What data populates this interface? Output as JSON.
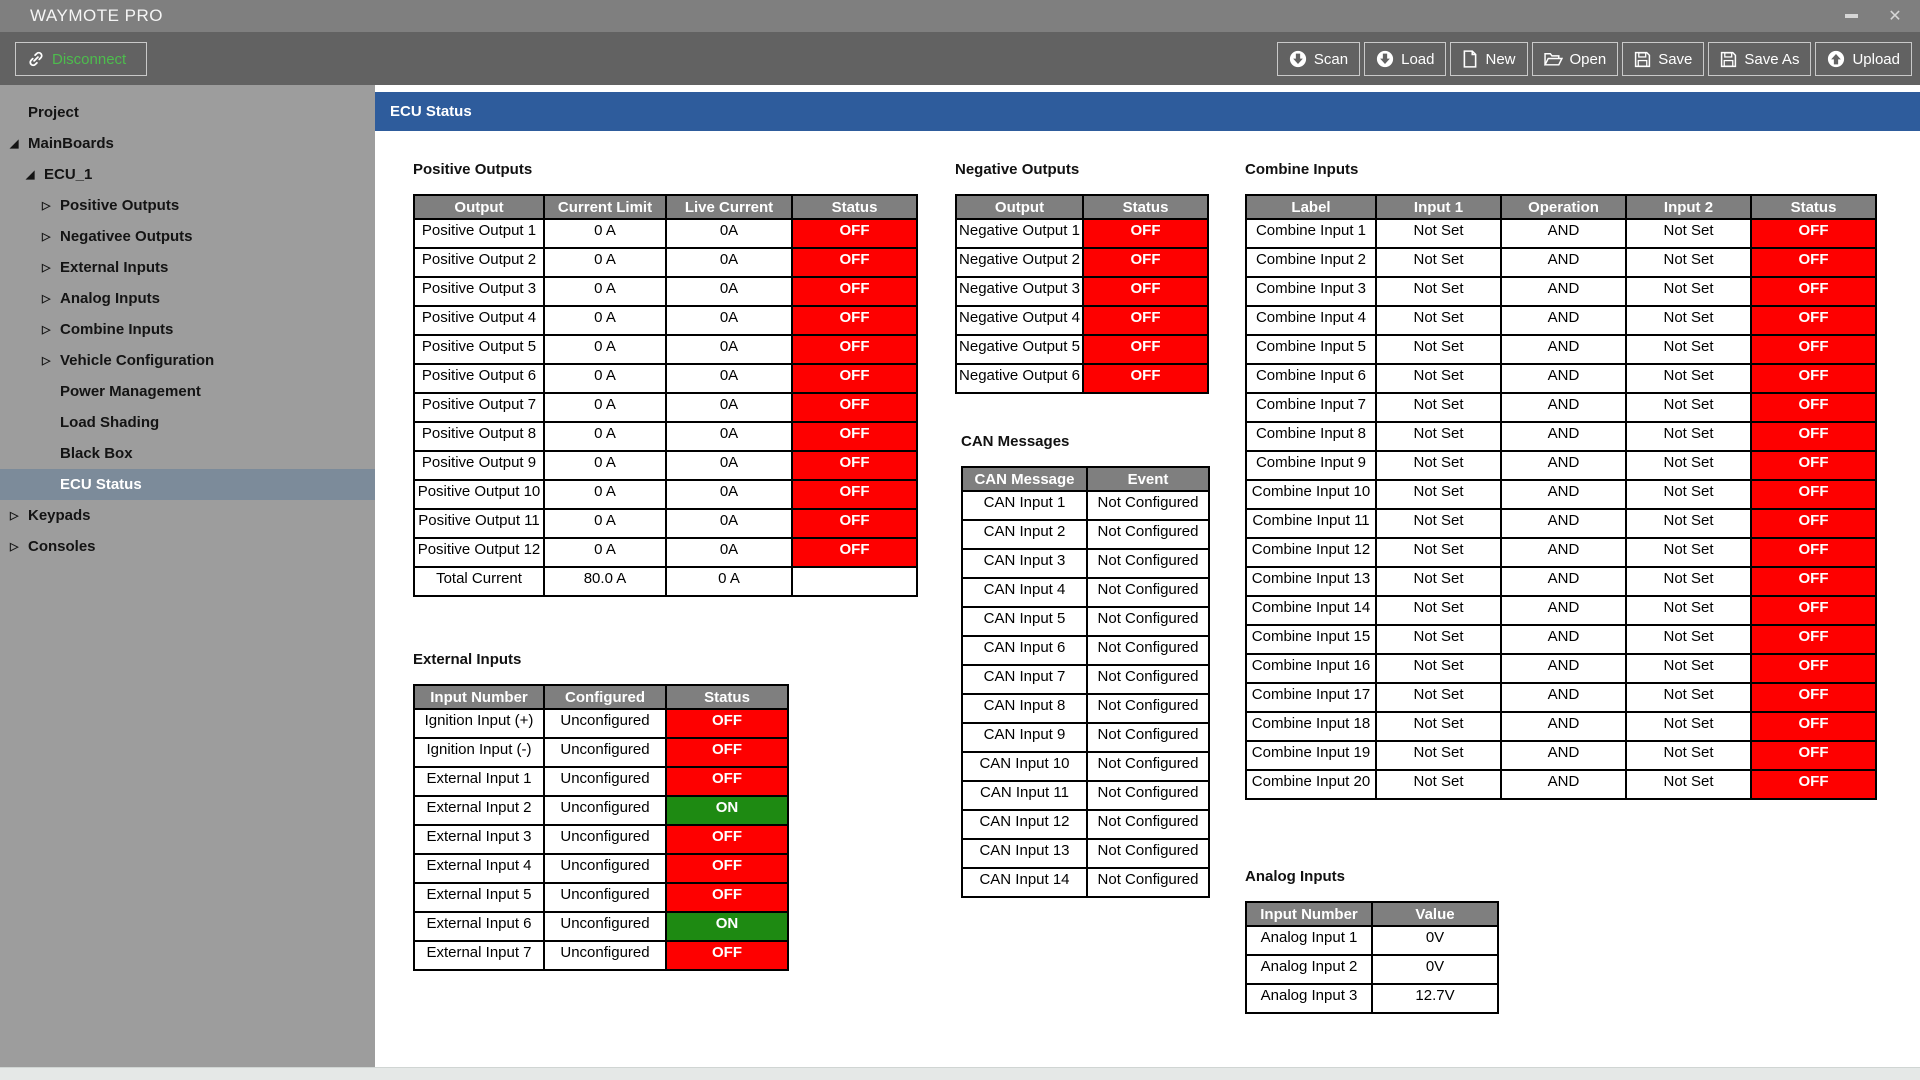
{
  "window": {
    "title": "WAYMOTE PRO"
  },
  "header": {
    "title": "ECU Status"
  },
  "toolbar": {
    "disconnect": {
      "label": "Disconnect",
      "icon": "chain-link-icon"
    },
    "buttons": [
      {
        "label": "Scan",
        "icon": "circle-down-arrow-icon"
      },
      {
        "label": "Load",
        "icon": "circle-down-arrow-icon"
      },
      {
        "label": "New",
        "icon": "document-icon"
      },
      {
        "label": "Open",
        "icon": "folder-open-icon"
      },
      {
        "label": "Save",
        "icon": "floppy-icon"
      },
      {
        "label": "Save As",
        "icon": "floppy-icon"
      },
      {
        "label": "Upload",
        "icon": "circle-up-arrow-icon"
      }
    ]
  },
  "sidebar": {
    "items": [
      {
        "label": "Project",
        "depth": 0,
        "arrow": "none",
        "selected": false
      },
      {
        "label": "MainBoards",
        "depth": 0,
        "arrow": "expanded",
        "selected": false
      },
      {
        "label": "ECU_1",
        "depth": 1,
        "arrow": "expanded",
        "selected": false
      },
      {
        "label": "Positive Outputs",
        "depth": 2,
        "arrow": "collapsed",
        "selected": false
      },
      {
        "label": "Negativee Outputs",
        "depth": 2,
        "arrow": "collapsed",
        "selected": false
      },
      {
        "label": "External Inputs",
        "depth": 2,
        "arrow": "collapsed",
        "selected": false
      },
      {
        "label": "Analog Inputs",
        "depth": 2,
        "arrow": "collapsed",
        "selected": false
      },
      {
        "label": "Combine Inputs",
        "depth": 2,
        "arrow": "collapsed",
        "selected": false
      },
      {
        "label": "Vehicle Configuration",
        "depth": 2,
        "arrow": "collapsed",
        "selected": false
      },
      {
        "label": "Power Management",
        "depth": 2,
        "arrow": "none",
        "selected": false
      },
      {
        "label": "Load Shading",
        "depth": 2,
        "arrow": "none",
        "selected": false
      },
      {
        "label": "Black Box",
        "depth": 2,
        "arrow": "none",
        "selected": false
      },
      {
        "label": "ECU Status",
        "depth": 2,
        "arrow": "none",
        "selected": true
      },
      {
        "label": "Keypads",
        "depth": 0,
        "arrow": "collapsed",
        "selected": false
      },
      {
        "label": "Consoles",
        "depth": 0,
        "arrow": "collapsed",
        "selected": false
      }
    ]
  },
  "tables": {
    "positive_outputs": {
      "title": "Positive Outputs",
      "columns": [
        "Output",
        "Current Limit",
        "Live Current",
        "Status"
      ],
      "rows": [
        [
          "Positive Output 1",
          "0 A",
          "0A",
          "OFF"
        ],
        [
          "Positive Output 2",
          "0 A",
          "0A",
          "OFF"
        ],
        [
          "Positive Output 3",
          "0 A",
          "0A",
          "OFF"
        ],
        [
          "Positive Output 4",
          "0 A",
          "0A",
          "OFF"
        ],
        [
          "Positive Output 5",
          "0 A",
          "0A",
          "OFF"
        ],
        [
          "Positive Output 6",
          "0 A",
          "0A",
          "OFF"
        ],
        [
          "Positive Output 7",
          "0 A",
          "0A",
          "OFF"
        ],
        [
          "Positive Output 8",
          "0 A",
          "0A",
          "OFF"
        ],
        [
          "Positive Output 9",
          "0 A",
          "0A",
          "OFF"
        ],
        [
          "Positive Output 10",
          "0 A",
          "0A",
          "OFF"
        ],
        [
          "Positive Output 11",
          "0 A",
          "0A",
          "OFF"
        ],
        [
          "Positive Output 12",
          "0 A",
          "0A",
          "OFF"
        ]
      ],
      "footer": [
        "Total Current",
        "80.0 A",
        "0 A",
        ""
      ]
    },
    "external_inputs": {
      "title": "External Inputs",
      "columns": [
        "Input Number",
        "Configured",
        "Status"
      ],
      "rows": [
        [
          "Ignition Input (+)",
          "Unconfigured",
          "OFF"
        ],
        [
          "Ignition Input (-)",
          "Unconfigured",
          "OFF"
        ],
        [
          "External Input 1",
          "Unconfigured",
          "OFF"
        ],
        [
          "External Input 2",
          "Unconfigured",
          "ON"
        ],
        [
          "External Input 3",
          "Unconfigured",
          "OFF"
        ],
        [
          "External Input 4",
          "Unconfigured",
          "OFF"
        ],
        [
          "External Input 5",
          "Unconfigured",
          "OFF"
        ],
        [
          "External Input 6",
          "Unconfigured",
          "ON"
        ],
        [
          "External Input 7",
          "Unconfigured",
          "OFF"
        ]
      ]
    },
    "negative_outputs": {
      "title": "Negative Outputs",
      "columns": [
        "Output",
        "Status"
      ],
      "rows": [
        [
          "Negative Output 1",
          "OFF"
        ],
        [
          "Negative Output 2",
          "OFF"
        ],
        [
          "Negative Output 3",
          "OFF"
        ],
        [
          "Negative Output 4",
          "OFF"
        ],
        [
          "Negative Output 5",
          "OFF"
        ],
        [
          "Negative Output 6",
          "OFF"
        ]
      ]
    },
    "can_messages": {
      "title": "CAN Messages",
      "columns": [
        "CAN Message",
        "Event"
      ],
      "rows": [
        [
          "CAN Input 1",
          "Not Configured"
        ],
        [
          "CAN Input 2",
          "Not Configured"
        ],
        [
          "CAN Input 3",
          "Not Configured"
        ],
        [
          "CAN Input 4",
          "Not Configured"
        ],
        [
          "CAN Input 5",
          "Not Configured"
        ],
        [
          "CAN Input 6",
          "Not Configured"
        ],
        [
          "CAN Input 7",
          "Not Configured"
        ],
        [
          "CAN Input 8",
          "Not Configured"
        ],
        [
          "CAN Input 9",
          "Not Configured"
        ],
        [
          "CAN Input 10",
          "Not Configured"
        ],
        [
          "CAN Input 11",
          "Not Configured"
        ],
        [
          "CAN Input 12",
          "Not Configured"
        ],
        [
          "CAN Input 13",
          "Not Configured"
        ],
        [
          "CAN Input 14",
          "Not Configured"
        ]
      ]
    },
    "combine_inputs": {
      "title": "Combine Inputs",
      "columns": [
        "Label",
        "Input 1",
        "Operation",
        "Input 2",
        "Status"
      ],
      "rows": [
        [
          "Combine Input 1",
          "Not Set",
          "AND",
          "Not Set",
          "OFF"
        ],
        [
          "Combine Input 2",
          "Not Set",
          "AND",
          "Not Set",
          "OFF"
        ],
        [
          "Combine Input 3",
          "Not Set",
          "AND",
          "Not Set",
          "OFF"
        ],
        [
          "Combine Input 4",
          "Not Set",
          "AND",
          "Not Set",
          "OFF"
        ],
        [
          "Combine Input 5",
          "Not Set",
          "AND",
          "Not Set",
          "OFF"
        ],
        [
          "Combine Input 6",
          "Not Set",
          "AND",
          "Not Set",
          "OFF"
        ],
        [
          "Combine Input 7",
          "Not Set",
          "AND",
          "Not Set",
          "OFF"
        ],
        [
          "Combine Input 8",
          "Not Set",
          "AND",
          "Not Set",
          "OFF"
        ],
        [
          "Combine Input 9",
          "Not Set",
          "AND",
          "Not Set",
          "OFF"
        ],
        [
          "Combine Input 10",
          "Not Set",
          "AND",
          "Not Set",
          "OFF"
        ],
        [
          "Combine Input 11",
          "Not Set",
          "AND",
          "Not Set",
          "OFF"
        ],
        [
          "Combine Input 12",
          "Not Set",
          "AND",
          "Not Set",
          "OFF"
        ],
        [
          "Combine Input 13",
          "Not Set",
          "AND",
          "Not Set",
          "OFF"
        ],
        [
          "Combine Input 14",
          "Not Set",
          "AND",
          "Not Set",
          "OFF"
        ],
        [
          "Combine Input 15",
          "Not Set",
          "AND",
          "Not Set",
          "OFF"
        ],
        [
          "Combine Input 16",
          "Not Set",
          "AND",
          "Not Set",
          "OFF"
        ],
        [
          "Combine Input 17",
          "Not Set",
          "AND",
          "Not Set",
          "OFF"
        ],
        [
          "Combine Input 18",
          "Not Set",
          "AND",
          "Not Set",
          "OFF"
        ],
        [
          "Combine Input 19",
          "Not Set",
          "AND",
          "Not Set",
          "OFF"
        ],
        [
          "Combine Input 20",
          "Not Set",
          "AND",
          "Not Set",
          "OFF"
        ]
      ]
    },
    "analog_inputs": {
      "title": "Analog Inputs",
      "columns": [
        "Input Number",
        "Value"
      ],
      "rows": [
        [
          "Analog Input 1",
          "0V"
        ],
        [
          "Analog Input 2",
          "0V"
        ],
        [
          "Analog Input 3",
          "12.7V"
        ]
      ]
    }
  },
  "colors": {
    "accent_blue": "#2e5c9c",
    "status_off_red": "#fe0000",
    "status_on_green": "#1e8a12",
    "disconnect_green": "#4dbd4d",
    "table_header_gray": "#7f7f7f",
    "titlebar_gray": "#7f7f7f",
    "toolbar_gray": "#626262",
    "sidebar_gray": "#9d9d9d",
    "selected_item": "#7c8b9a"
  }
}
